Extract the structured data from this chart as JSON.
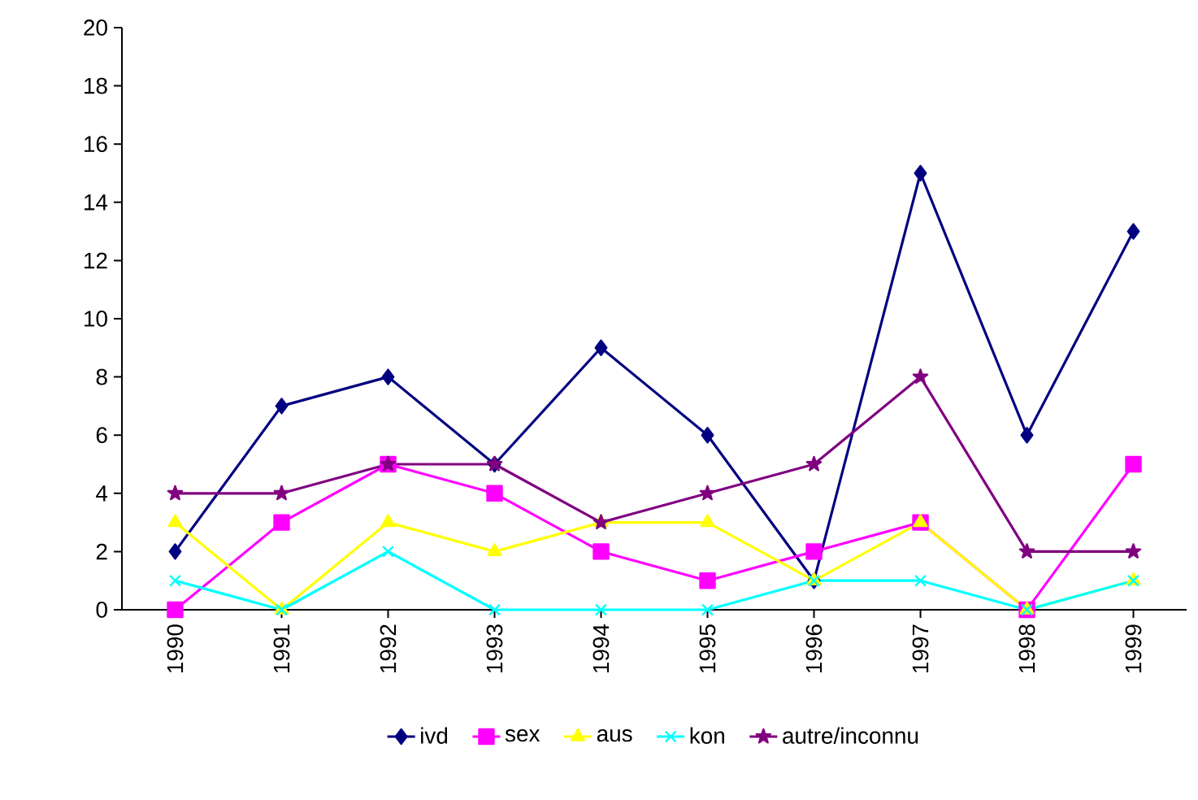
{
  "chart_data": {
    "type": "line",
    "categories": [
      "1990",
      "1991",
      "1992",
      "1993",
      "1994",
      "1995",
      "1996",
      "1997",
      "1998",
      "1999"
    ],
    "ylim": [
      0,
      20
    ],
    "yticks": [
      0,
      2,
      4,
      6,
      8,
      10,
      12,
      14,
      16,
      18,
      20
    ],
    "grid": false,
    "legend": "bottom",
    "series": [
      {
        "name": "ivd",
        "color": "#000080",
        "marker": "diamond",
        "values": [
          2,
          7,
          8,
          5,
          9,
          6,
          1,
          15,
          6,
          13
        ]
      },
      {
        "name": "sex",
        "color": "#ff00ff",
        "marker": "square",
        "values": [
          0,
          3,
          5,
          4,
          2,
          1,
          2,
          3,
          0,
          5
        ]
      },
      {
        "name": "aus",
        "color": "#ffff00",
        "marker": "triangle",
        "values": [
          3,
          0,
          3,
          2,
          3,
          3,
          1,
          3,
          0,
          1
        ]
      },
      {
        "name": "kon",
        "color": "#00ffff",
        "marker": "cross",
        "values": [
          1,
          0,
          2,
          0,
          0,
          0,
          1,
          1,
          0,
          1
        ]
      },
      {
        "name": "autre/inconnu",
        "color": "#800080",
        "marker": "star",
        "values": [
          4,
          4,
          5,
          5,
          3,
          4,
          5,
          8,
          2,
          2
        ]
      }
    ]
  }
}
